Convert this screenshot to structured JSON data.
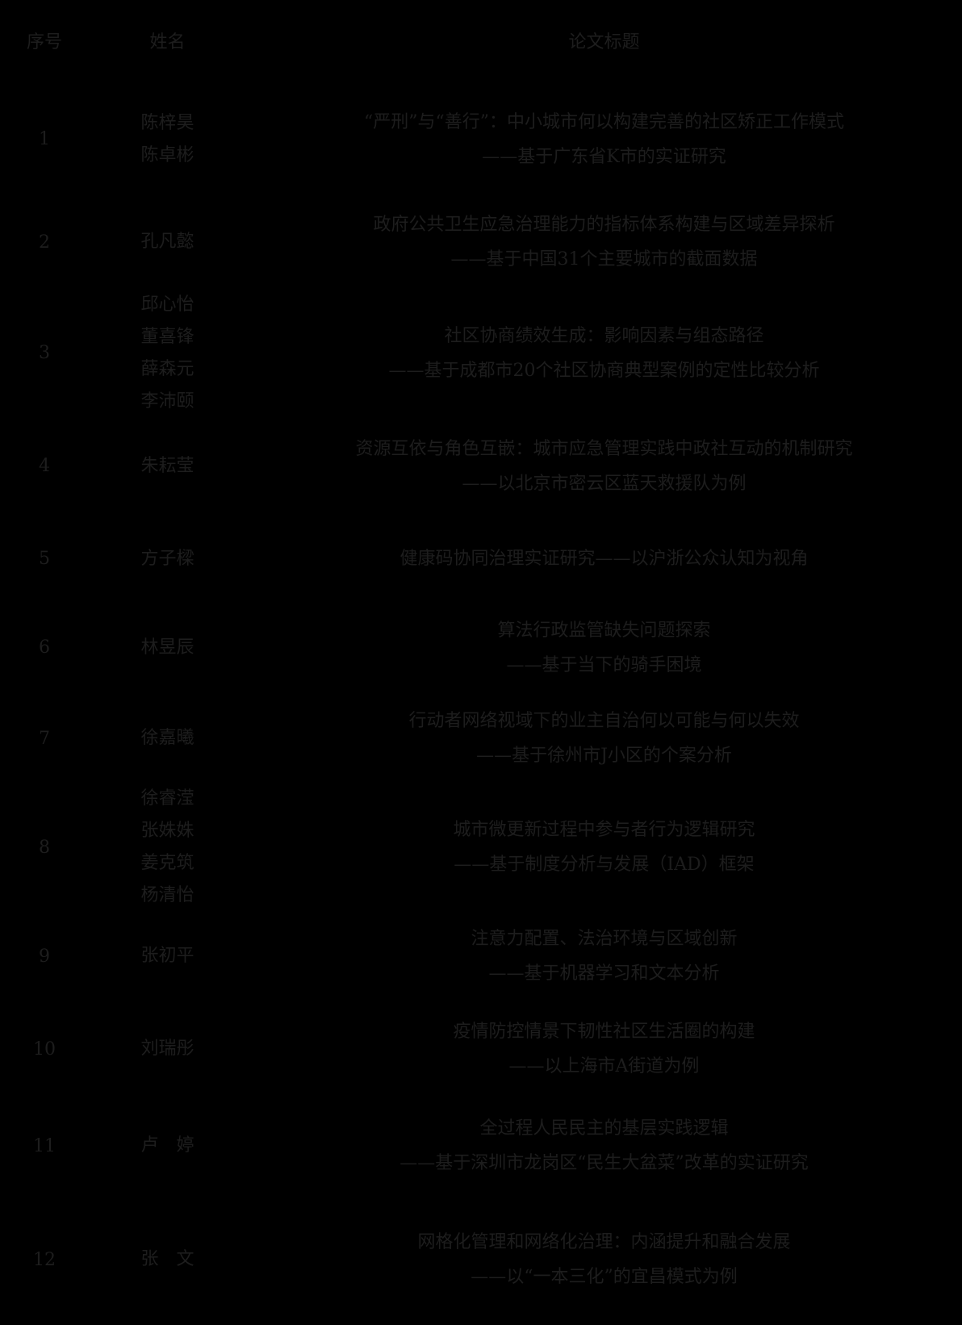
{
  "colors": {
    "background": "#000000",
    "text": "#1d1d1d"
  },
  "table": {
    "columns": [
      "序号",
      "姓名",
      "论文标题"
    ],
    "rows": [
      {
        "no": "1",
        "names": [
          "陈梓昊",
          "陈卓彬"
        ],
        "title_lines": [
          "“严刑”与“善行”：中小城市何以构建完善的社区矫正工作模式",
          "——基于广东省K市的实证研究"
        ]
      },
      {
        "no": "2",
        "names": [
          "孔凡懿"
        ],
        "title_lines": [
          "政府公共卫生应急治理能力的指标体系构建与区域差异探析",
          "——基于中国31个主要城市的截面数据"
        ]
      },
      {
        "no": "3",
        "names": [
          "邱心怡",
          "董喜锋",
          "薛森元",
          "李沛颐"
        ],
        "title_lines": [
          "社区协商绩效生成：影响因素与组态路径",
          "——基于成都市20个社区协商典型案例的定性比较分析"
        ]
      },
      {
        "no": "4",
        "names": [
          "朱耘莹"
        ],
        "title_lines": [
          "资源互依与角色互嵌：城市应急管理实践中政社互动的机制研究",
          "——以北京市密云区蓝天救援队为例"
        ]
      },
      {
        "no": "5",
        "names": [
          "方子樑"
        ],
        "title_lines": [
          "健康码协同治理实证研究——以沪浙公众认知为视角"
        ]
      },
      {
        "no": "6",
        "names": [
          "林昱辰"
        ],
        "title_lines": [
          "算法行政监管缺失问题探索",
          "——基于当下的骑手困境"
        ]
      },
      {
        "no": "7",
        "names": [
          "徐嘉曦"
        ],
        "title_lines": [
          "行动者网络视域下的业主自治何以可能与何以失效",
          "——基于徐州市J小区的个案分析"
        ]
      },
      {
        "no": "8",
        "names": [
          "徐睿滢",
          "张姝姝",
          "姜克筑",
          "杨清怡"
        ],
        "title_lines": [
          "城市微更新过程中参与者行为逻辑研究",
          "——基于制度分析与发展（IAD）框架"
        ]
      },
      {
        "no": "9",
        "names": [
          "张初平"
        ],
        "title_lines": [
          "注意力配置、法治环境与区域创新",
          "——基于机器学习和文本分析"
        ]
      },
      {
        "no": "10",
        "names": [
          "刘瑞彤"
        ],
        "title_lines": [
          "疫情防控情景下韧性社区生活圈的构建",
          "——以上海市A街道为例"
        ]
      },
      {
        "no": "11",
        "names": [
          "卢　婷"
        ],
        "title_lines": [
          "全过程人民民主的基层实践逻辑",
          "——基于深圳市龙岗区“民生大盆菜”改革的实证研究"
        ]
      },
      {
        "no": "12",
        "names": [
          "张　文"
        ],
        "title_lines": [
          "网格化管理和网络化治理：内涵提升和融合发展",
          "——以“一本三化”的宜昌模式为例"
        ]
      }
    ]
  }
}
